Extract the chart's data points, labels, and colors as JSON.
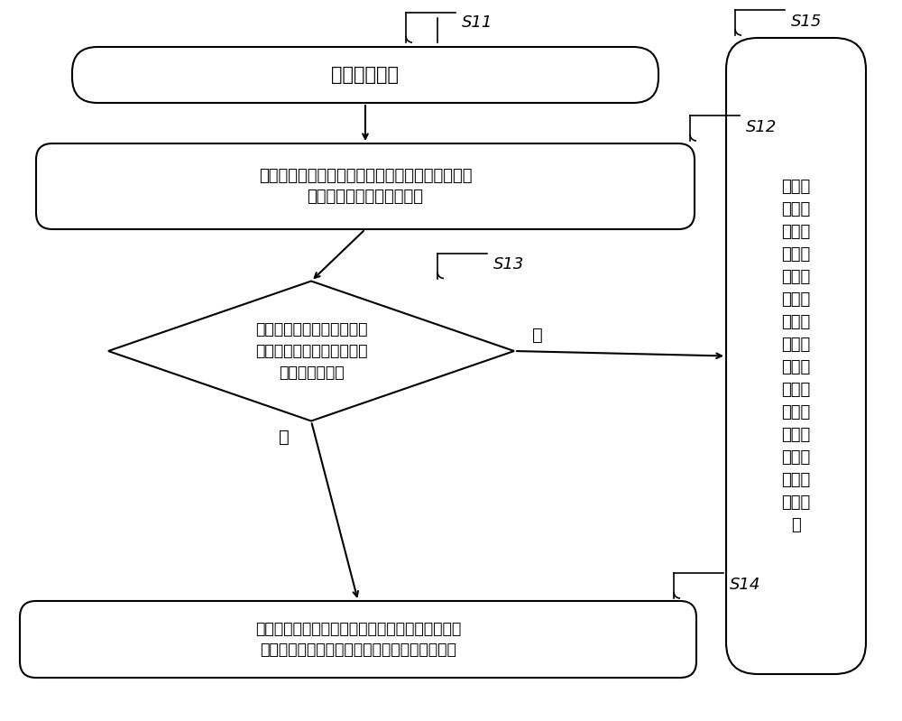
{
  "bg_color": "#ffffff",
  "line_color": "#000000",
  "box_fill": "#ffffff",
  "text_color": "#000000",
  "s11_label": "S11",
  "s12_label": "S12",
  "s13_label": "S13",
  "s14_label": "S14",
  "s15_label": "S15",
  "box1_text": "接收业务数据",
  "box2_text": "将所述业务数据的业务用户标识和业务标识作为第\n一记录存储于第一数据库中",
  "diamond_text": "确定各所述业务公用属性的\n属性值是否存在于第二数据\n库的一条记录中",
  "box4_text": "建立所述第二数据库中存储有各所述业务公用属性\n的属性值的第二记录与所述第一记录的关联关系",
  "box5_text": "将各业\n务公用\n属性对\n应的属\n性值作\n为第三\n记录存\n储在第\n二数据\n库，并\n将第三\n记录和\n第一记\n录建立\n关联关\n系",
  "yes_label": "是",
  "no_label": "否",
  "font_size_main": 14,
  "font_size_label": 13,
  "font_size_step": 12
}
